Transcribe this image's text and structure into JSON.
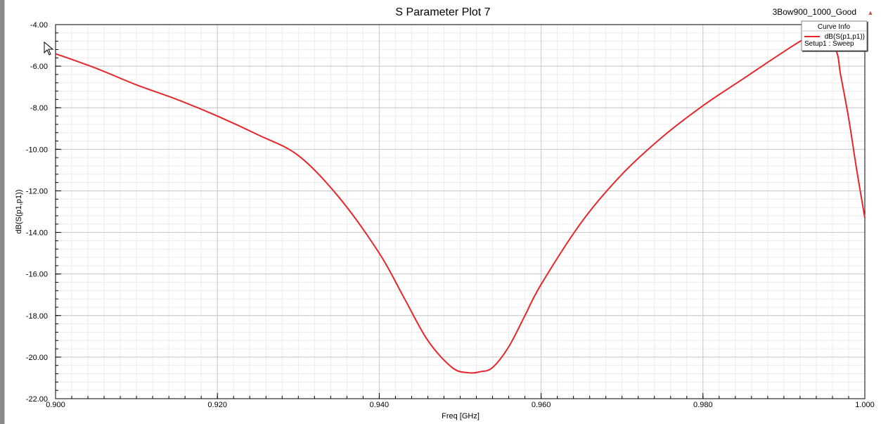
{
  "window": {
    "project_label": "3Bow900_1000_Good",
    "collapse_glyph": "▲"
  },
  "chart_data": {
    "type": "line",
    "title": "S Parameter Plot 7",
    "xlabel": "Freq [GHz]",
    "ylabel": "dB(S(p1,p1))",
    "xlim": [
      0.9,
      1.0
    ],
    "ylim": [
      -22,
      -4
    ],
    "x_ticks": [
      "0.900",
      "0.920",
      "0.940",
      "0.960",
      "0.980",
      "1.000"
    ],
    "y_ticks": [
      "-4.00",
      "-6.00",
      "-8.00",
      "-10.00",
      "-12.00",
      "-14.00",
      "-16.00",
      "-18.00",
      "-20.00",
      "-22.00"
    ],
    "grid": true,
    "legend": {
      "title": "Curve Info",
      "position": "top-right",
      "entries": [
        {
          "name": "dB(S(p1,p1))",
          "sub": "Setup1 : Sweep",
          "color": "#e8262a"
        }
      ]
    },
    "series": [
      {
        "name": "dB(S(p1,p1))",
        "color": "#e8262a",
        "x": [
          0.9,
          0.905,
          0.91,
          0.915,
          0.92,
          0.925,
          0.93,
          0.935,
          0.94,
          0.943,
          0.946,
          0.949,
          0.951,
          0.9525,
          0.954,
          0.956,
          0.958,
          0.96,
          0.965,
          0.97,
          0.975,
          0.98,
          0.985,
          0.99,
          0.993,
          0.995,
          0.9965,
          0.997,
          0.998,
          0.999,
          1.0
        ],
        "y": [
          -5.4,
          -6.1,
          -6.9,
          -7.6,
          -8.4,
          -9.3,
          -10.3,
          -12.3,
          -15.0,
          -17.1,
          -19.2,
          -20.5,
          -20.75,
          -20.7,
          -20.5,
          -19.5,
          -18.0,
          -16.5,
          -13.5,
          -11.2,
          -9.4,
          -7.9,
          -6.6,
          -5.3,
          -4.6,
          -4.5,
          -5.3,
          -6.4,
          -8.5,
          -11.0,
          -13.3
        ]
      }
    ]
  }
}
